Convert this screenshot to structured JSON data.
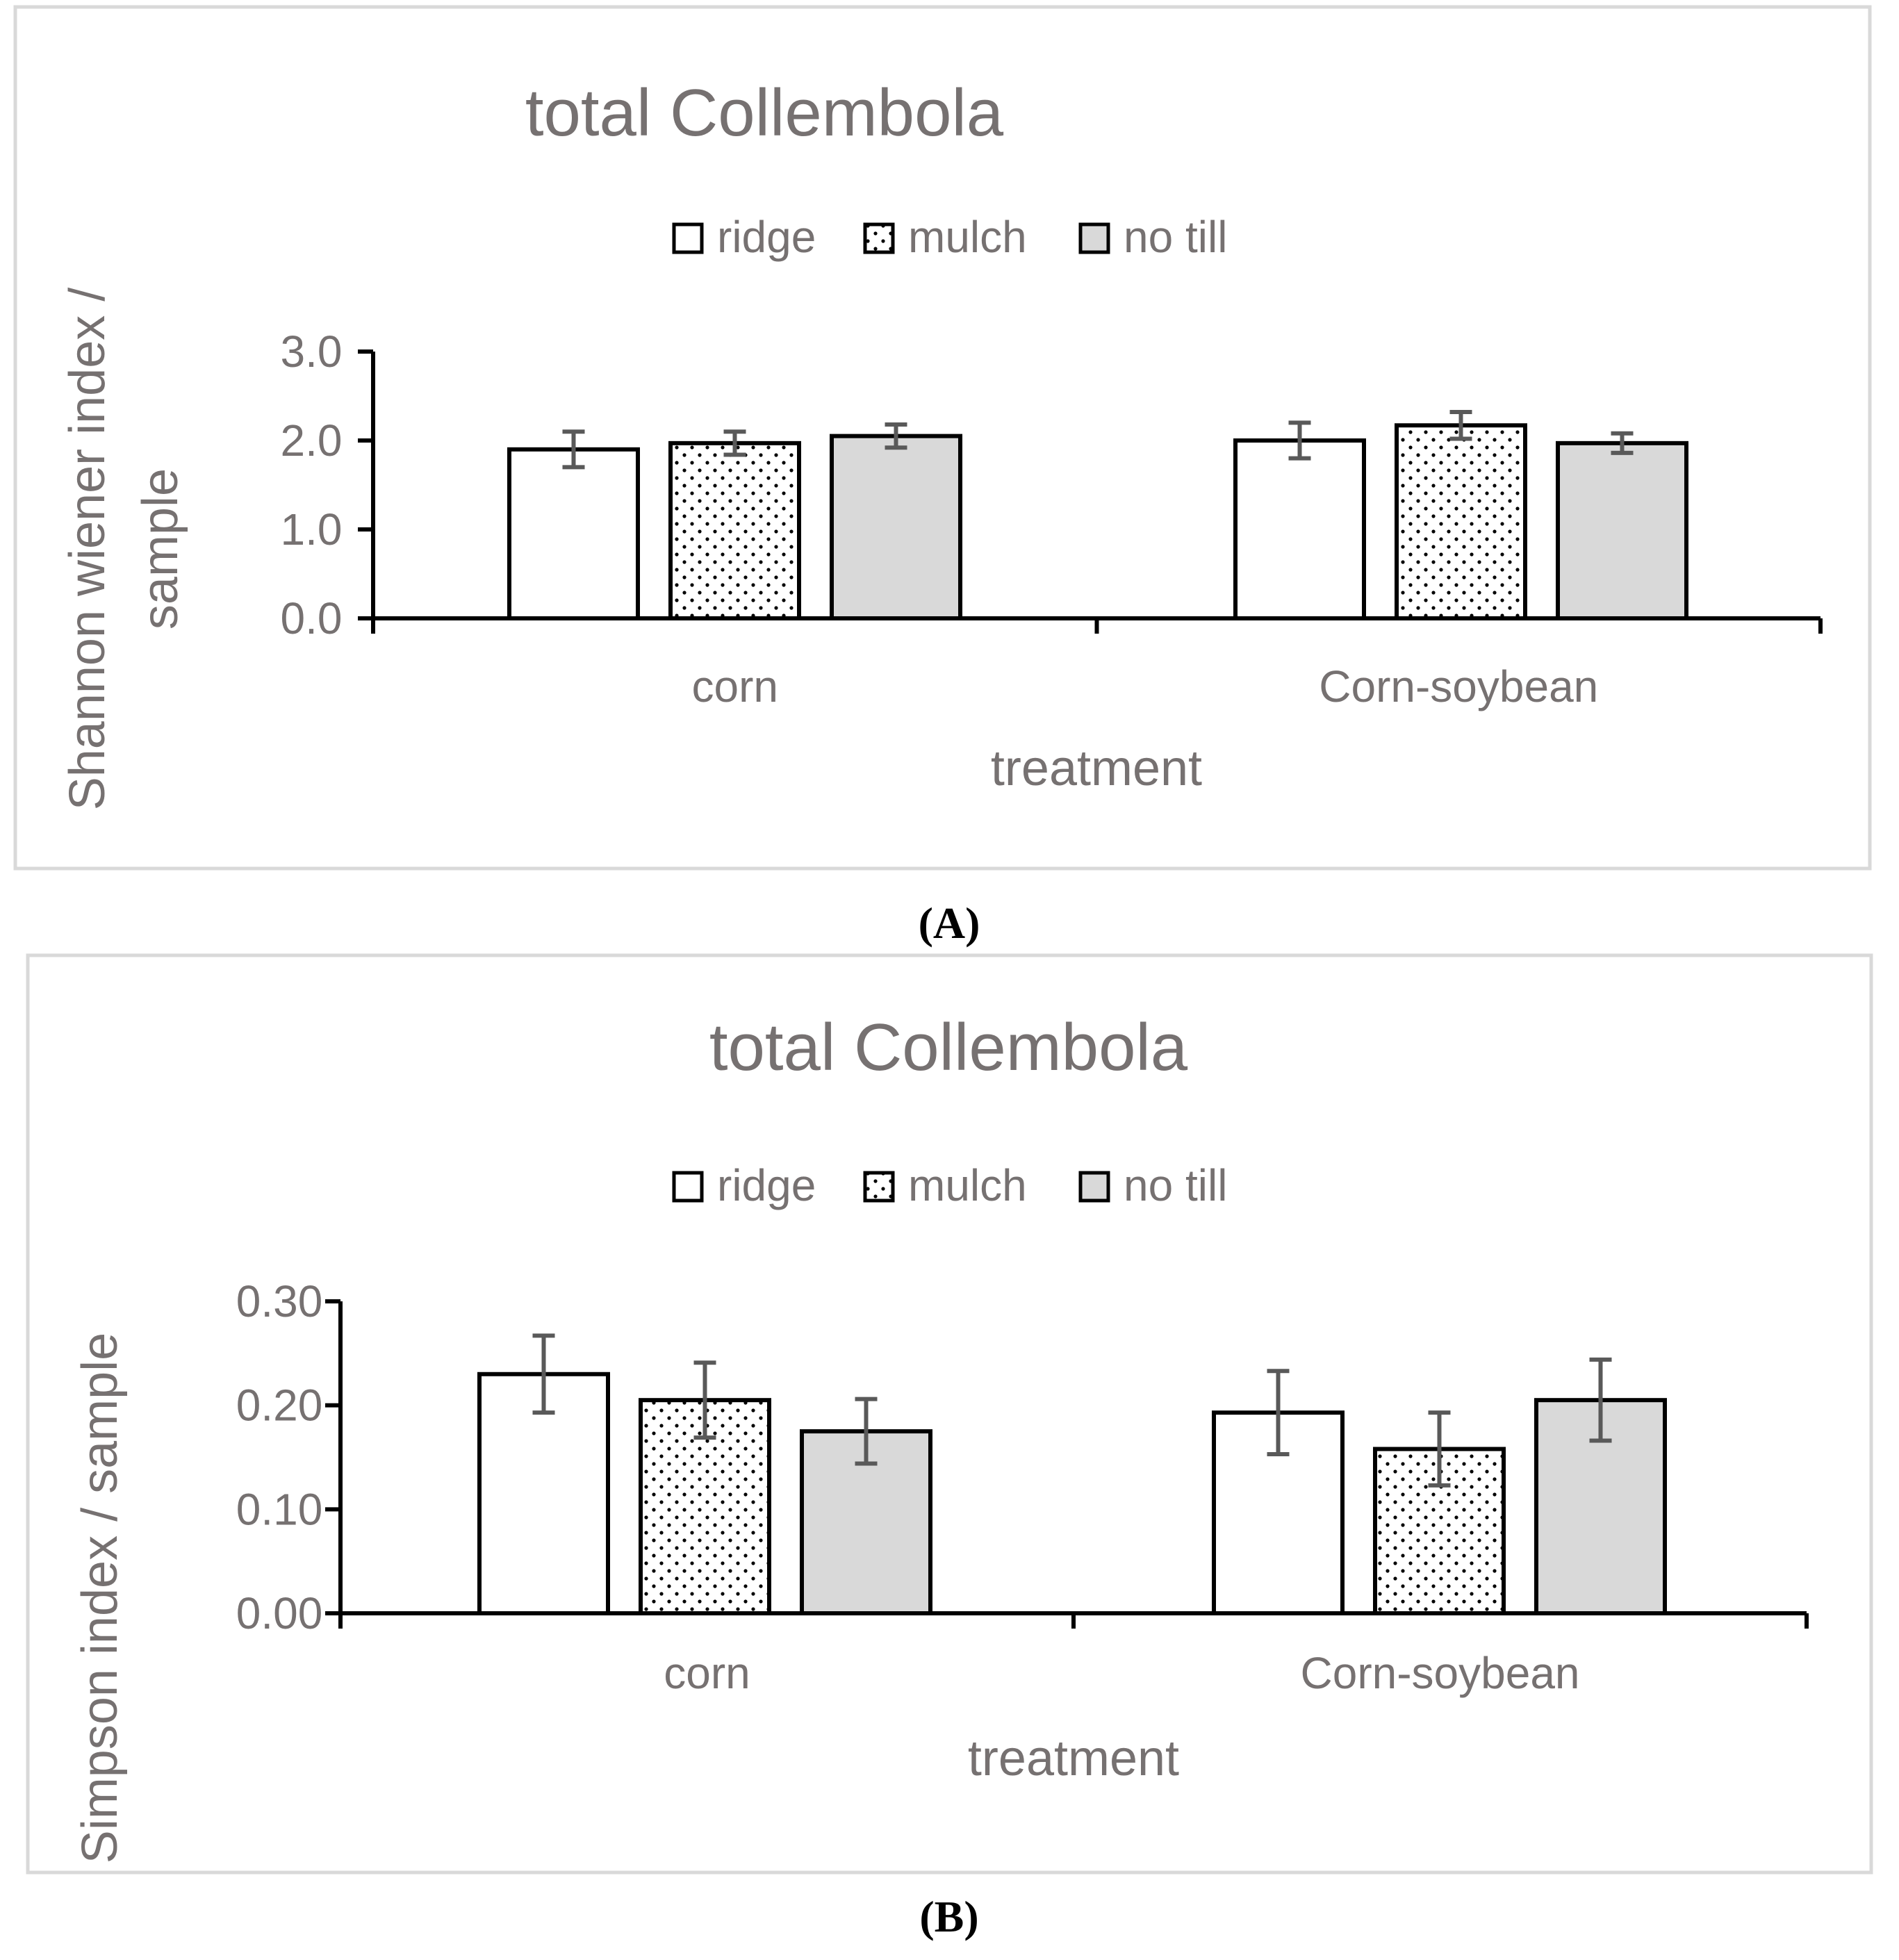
{
  "colors": {
    "frame": "#d9d9d9",
    "text": "#767171",
    "axis": "#000000",
    "errorbar": "#595959",
    "fill_notill": "#d9d9d9",
    "fill_white": "#ffffff"
  },
  "chart_data": [
    {
      "type": "bar",
      "title": "total Collembola",
      "ylabel_lines": [
        "Shannon wiener index /",
        "sample"
      ],
      "xlabel": "treatment",
      "categories": [
        "corn",
        "Corn-soybean"
      ],
      "legend": [
        "ridge",
        "mulch",
        "no till"
      ],
      "legend_position": "top-center",
      "ylim": [
        0,
        3.0
      ],
      "yticks": [
        "0.0",
        "1.0",
        "2.0",
        "3.0"
      ],
      "grid": false,
      "series": [
        {
          "name": "ridge",
          "pattern": "white",
          "values": [
            1.9,
            2.0
          ],
          "errors": [
            0.2,
            0.2
          ]
        },
        {
          "name": "mulch",
          "pattern": "dotted",
          "values": [
            1.97,
            2.17
          ],
          "errors": [
            0.13,
            0.15
          ]
        },
        {
          "name": "no till",
          "pattern": "gray",
          "values": [
            2.05,
            1.97
          ],
          "errors": [
            0.13,
            0.11
          ]
        }
      ],
      "caption": "(A)"
    },
    {
      "type": "bar",
      "title": "total Collembola",
      "ylabel_lines": [
        "Simpson index / sample"
      ],
      "xlabel": "treatment",
      "categories": [
        "corn",
        "Corn-soybean"
      ],
      "legend": [
        "ridge",
        "mulch",
        "no till"
      ],
      "legend_position": "top-center",
      "ylim": [
        0,
        0.3
      ],
      "yticks": [
        "0.00",
        "0.10",
        "0.20",
        "0.30"
      ],
      "grid": false,
      "series": [
        {
          "name": "ridge",
          "pattern": "white",
          "values": [
            0.23,
            0.193
          ],
          "errors": [
            0.037,
            0.04
          ]
        },
        {
          "name": "mulch",
          "pattern": "dotted",
          "values": [
            0.205,
            0.158
          ],
          "errors": [
            0.036,
            0.035
          ]
        },
        {
          "name": "no till",
          "pattern": "gray",
          "values": [
            0.175,
            0.205
          ],
          "errors": [
            0.031,
            0.039
          ]
        }
      ],
      "caption": "(B)"
    }
  ]
}
